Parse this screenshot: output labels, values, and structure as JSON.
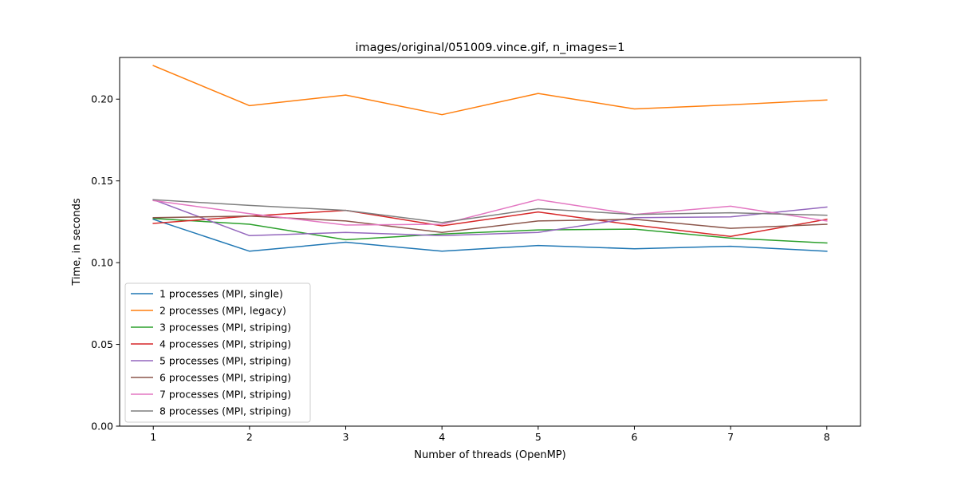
{
  "chart_data": {
    "type": "line",
    "title": "images/original/051009.vince.gif, n_images=1",
    "xlabel": "Number of threads (OpenMP)",
    "ylabel": "Time, in seconds",
    "x": [
      1,
      2,
      3,
      4,
      5,
      6,
      7,
      8
    ],
    "xlim": [
      0.65,
      8.35
    ],
    "ylim": [
      0.0,
      0.2255
    ],
    "yticks": [
      0.0,
      0.05,
      0.1,
      0.15,
      0.2
    ],
    "ytick_labels": [
      "0.00",
      "0.05",
      "0.10",
      "0.15",
      "0.20"
    ],
    "xtick_labels": [
      "1",
      "2",
      "3",
      "4",
      "5",
      "6",
      "7",
      "8"
    ],
    "grid": false,
    "legend_position": "lower-left",
    "series": [
      {
        "name": "1 processes (MPI, single)",
        "color": "#1f77b4",
        "values": [
          0.1265,
          0.107,
          0.1125,
          0.107,
          0.1105,
          0.1085,
          0.11,
          0.107
        ]
      },
      {
        "name": "2 processes (MPI, legacy)",
        "color": "#ff7f0e",
        "values": [
          0.2205,
          0.196,
          0.2025,
          0.1905,
          0.2035,
          0.194,
          0.1965,
          0.1995
        ]
      },
      {
        "name": "3 processes (MPI, striping)",
        "color": "#2ca02c",
        "values": [
          0.127,
          0.1235,
          0.114,
          0.1175,
          0.12,
          0.1205,
          0.115,
          0.112
        ]
      },
      {
        "name": "4 processes (MPI, striping)",
        "color": "#d62728",
        "values": [
          0.124,
          0.1285,
          0.132,
          0.1225,
          0.131,
          0.123,
          0.116,
          0.1265
        ]
      },
      {
        "name": "5 processes (MPI, striping)",
        "color": "#9467bd",
        "values": [
          0.1385,
          0.1165,
          0.1185,
          0.1165,
          0.1185,
          0.1275,
          0.128,
          0.134
        ]
      },
      {
        "name": "6 processes (MPI, striping)",
        "color": "#8c564b",
        "values": [
          0.1275,
          0.1285,
          0.1255,
          0.1185,
          0.1255,
          0.1265,
          0.121,
          0.1235
        ]
      },
      {
        "name": "7 processes (MPI, striping)",
        "color": "#e377c2",
        "values": [
          0.138,
          0.13,
          0.123,
          0.1235,
          0.1385,
          0.1295,
          0.1345,
          0.1255
        ]
      },
      {
        "name": "8 processes (MPI, striping)",
        "color": "#7f7f7f",
        "values": [
          0.1385,
          0.135,
          0.132,
          0.1245,
          0.133,
          0.1295,
          0.1305,
          0.129
        ]
      }
    ]
  }
}
